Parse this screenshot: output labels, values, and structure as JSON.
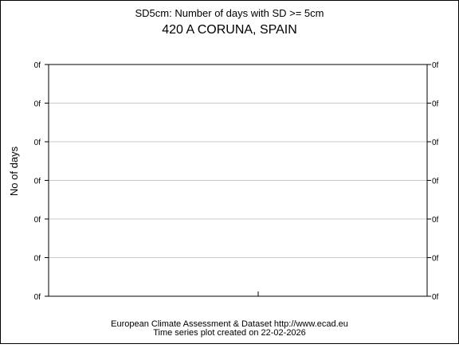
{
  "chart_data": {
    "type": "line",
    "title": "SD5cm: Number of days with SD >= 5cm",
    "subtitle": "420 A CORUNA, SPAIN",
    "xlabel": "",
    "ylabel": "No of days",
    "y_tick_labels": [
      "0f",
      "0f",
      "0f",
      "0f",
      "0f",
      "0f",
      "0f"
    ],
    "x_tick_labels": [],
    "grid": true,
    "series": [
      {
        "x": [],
        "y": []
      }
    ],
    "colors": {
      "line": "#ff0000",
      "grid": "#c8c8c8",
      "axis": "#000000",
      "background": "#ffffff"
    }
  },
  "footer": {
    "line1": "European Climate Assessment & Dataset  http://www.ecad.eu",
    "line2": "Time series plot created on 22-02-2026"
  }
}
